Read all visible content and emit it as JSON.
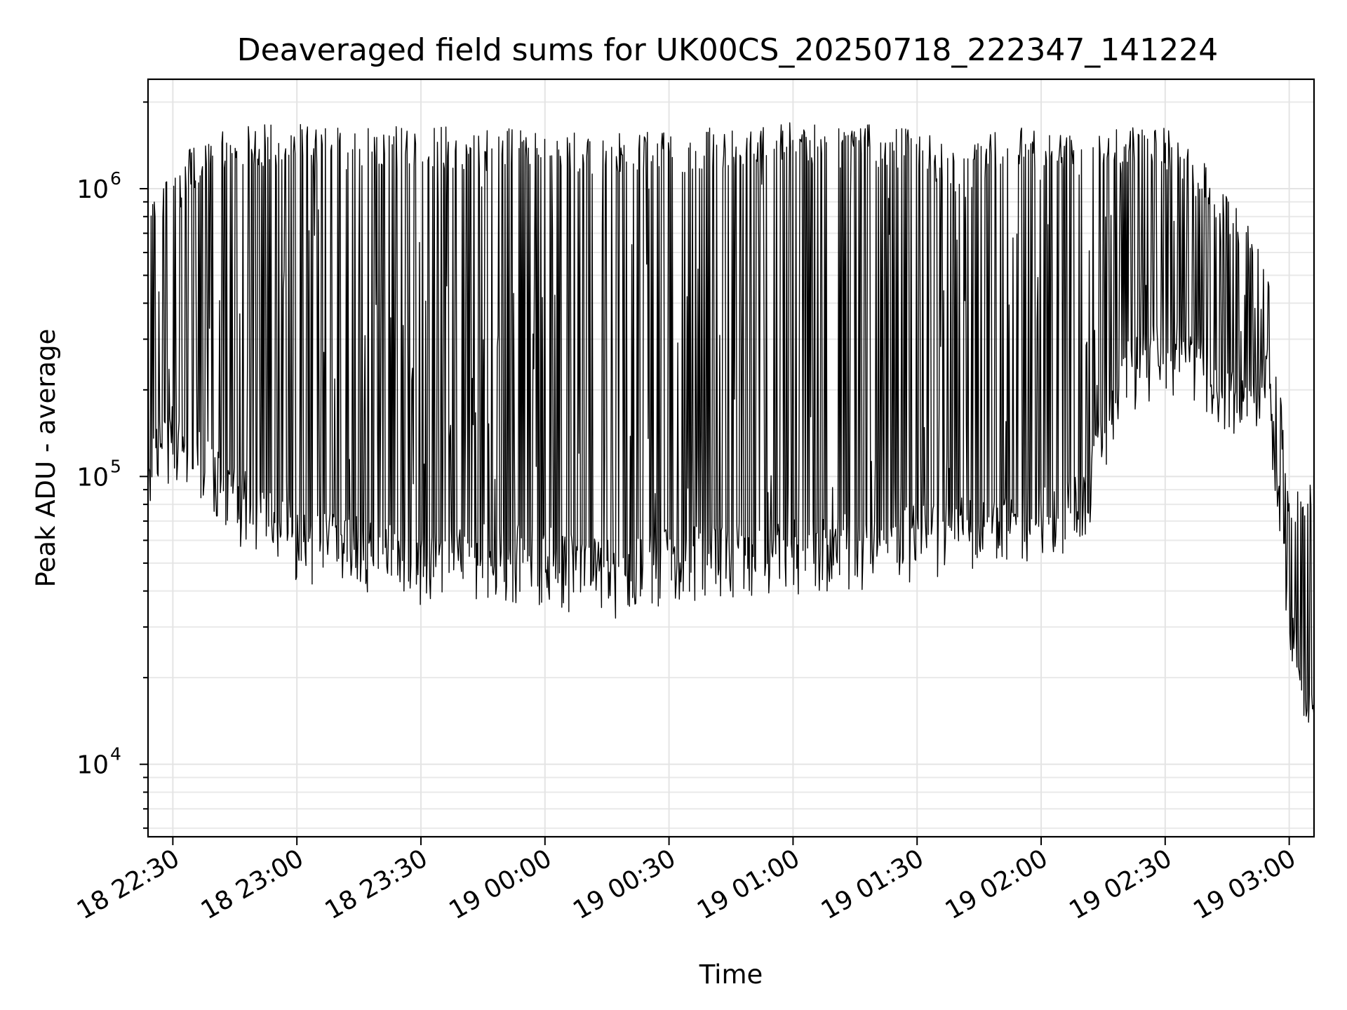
{
  "chart_data": {
    "type": "line",
    "title": "Deaveraged field sums for UK00CS_20250718_222347_141224",
    "xlabel": "Time",
    "ylabel": "Peak ADU - average",
    "yscale": "log",
    "xlim": [
      "18 22:24",
      "19 03:06"
    ],
    "ylim": [
      5600,
      2400000
    ],
    "grid": true,
    "legend": "none",
    "line_color": "#000000",
    "x_ticks": [
      "18 22:30",
      "18 23:00",
      "18 23:30",
      "19 00:00",
      "19 00:30",
      "19 01:00",
      "19 01:30",
      "19 02:00",
      "19 02:30",
      "19 03:00"
    ],
    "y_ticks": [
      {
        "value": 10000,
        "base": "10",
        "exp": "4"
      },
      {
        "value": 100000,
        "base": "10",
        "exp": "5"
      },
      {
        "value": 1000000,
        "base": "10",
        "exp": "6"
      }
    ],
    "envelope": {
      "x": [
        "18 22:24",
        "18 22:30",
        "18 22:40",
        "18 22:50",
        "18 23:00",
        "18 23:10",
        "18 23:20",
        "18 23:30",
        "18 23:40",
        "18 23:50",
        "19 00:00",
        "19 00:10",
        "19 00:20",
        "19 00:30",
        "19 00:40",
        "19 00:50",
        "19 01:00",
        "19 01:10",
        "19 01:20",
        "19 01:30",
        "19 01:40",
        "19 01:50",
        "19 02:00",
        "19 02:10",
        "19 02:20",
        "19 02:30",
        "19 02:40",
        "19 02:50",
        "19 02:55",
        "19 03:00",
        "19 03:06"
      ],
      "high": [
        900000,
        1200000,
        1600000,
        1650000,
        1650000,
        1600000,
        1600000,
        1650000,
        1600000,
        1600000,
        1600000,
        1550000,
        1600000,
        1550000,
        1600000,
        1600000,
        1700000,
        1600000,
        1650000,
        1600000,
        1300000,
        1600000,
        1600000,
        1500000,
        1600000,
        1600000,
        1200000,
        800000,
        500000,
        90000,
        95000
      ],
      "low": [
        100000,
        120000,
        90000,
        65000,
        55000,
        50000,
        47000,
        45000,
        46000,
        47000,
        45000,
        42000,
        40000,
        45000,
        48000,
        47000,
        48000,
        50000,
        52000,
        55000,
        55000,
        60000,
        65000,
        70000,
        200000,
        250000,
        200000,
        150000,
        200000,
        25000,
        12000
      ]
    }
  }
}
